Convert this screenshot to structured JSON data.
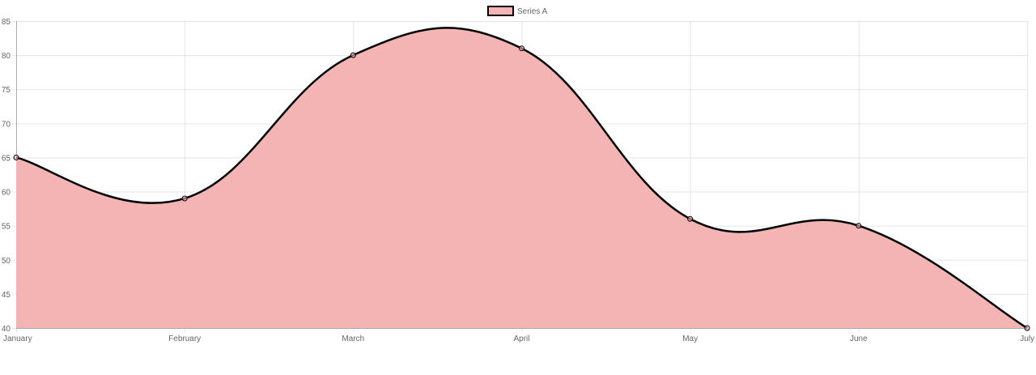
{
  "chart_data": {
    "type": "area",
    "categories": [
      "January",
      "February",
      "March",
      "April",
      "May",
      "June",
      "July"
    ],
    "series": [
      {
        "name": "Series A",
        "values": [
          65,
          59,
          80,
          81,
          56,
          55,
          40
        ]
      }
    ],
    "yticks": [
      "85",
      "80",
      "75",
      "70",
      "65",
      "60",
      "55",
      "50",
      "45",
      "40"
    ],
    "ylim": [
      40,
      85
    ],
    "grid": true,
    "legend_position": "top",
    "colors": {
      "fill": "#f4b4b4",
      "line": "#000000",
      "point": "#000000"
    },
    "curve": "smooth"
  }
}
